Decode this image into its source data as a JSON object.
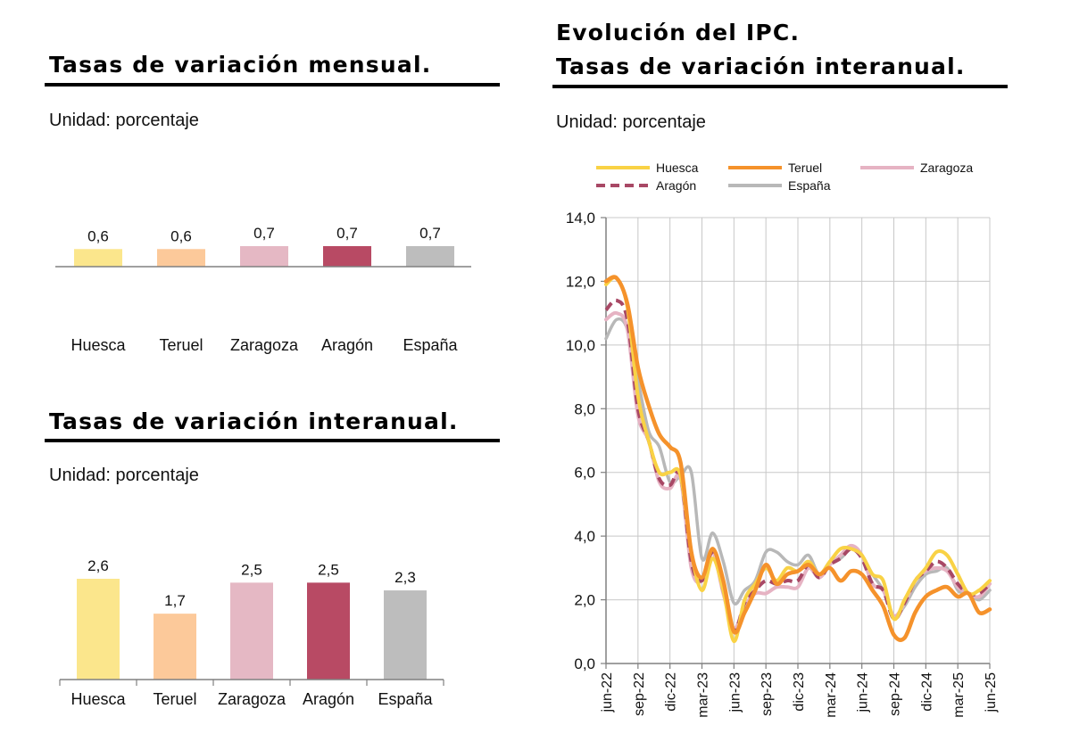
{
  "monthly": {
    "title": "Tasas de variación mensual.",
    "unit": "Unidad: porcentaje"
  },
  "annual": {
    "title": "Tasas de variación interanual.",
    "unit": "Unidad: porcentaje"
  },
  "evolution": {
    "title_line1": "Evolución del IPC.",
    "title_line2": "Tasas de variación interanual.",
    "unit": "Unidad: porcentaje"
  },
  "colors": {
    "Huesca": "#fbe68c",
    "Teruel": "#fcc99a",
    "Zaragoza": "#e5b8c4",
    "Aragón": "#b84a64",
    "España": "#bdbdbd",
    "line_Huesca": "#f9d245",
    "line_Teruel": "#f5922b",
    "line_Zaragoza": "#e6b3c3",
    "line_Aragón": "#a84865",
    "line_España": "#b8b8b8"
  },
  "chart_data": [
    {
      "type": "bar",
      "categories": [
        "Huesca",
        "Teruel",
        "Zaragoza",
        "Aragón",
        "España"
      ],
      "values": [
        0.6,
        0.6,
        0.7,
        0.7,
        0.7
      ],
      "value_labels": [
        "0,6",
        "0,6",
        "0,7",
        "0,7",
        "0,7"
      ],
      "grid": false
    },
    {
      "type": "bar",
      "categories": [
        "Huesca",
        "Teruel",
        "Zaragoza",
        "Aragón",
        "España"
      ],
      "values": [
        2.6,
        1.7,
        2.5,
        2.5,
        2.3
      ],
      "value_labels": [
        "2,6",
        "1,7",
        "2,5",
        "2,5",
        "2,3"
      ],
      "grid": false
    },
    {
      "type": "line",
      "legend_placement": "top",
      "grid": true,
      "ylim": [
        0,
        14
      ],
      "yticks": [
        "0,0",
        "2,0",
        "4,0",
        "6,0",
        "8,0",
        "10,0",
        "12,0",
        "14,0"
      ],
      "x": [
        "jun-22",
        "jul-22",
        "ago-22",
        "sep-22",
        "oct-22",
        "nov-22",
        "dic-22",
        "ene-23",
        "feb-23",
        "mar-23",
        "abr-23",
        "may-23",
        "jun-23",
        "jul-23",
        "ago-23",
        "sep-23",
        "oct-23",
        "nov-23",
        "dic-23",
        "ene-24",
        "feb-24",
        "mar-24",
        "abr-24",
        "may-24",
        "jun-24",
        "jul-24",
        "ago-24",
        "sep-24",
        "oct-24",
        "nov-24",
        "dic-24",
        "ene-25",
        "feb-25",
        "mar-25",
        "abr-25",
        "may-25",
        "jun-25"
      ],
      "xtick_labels": [
        "jun-22",
        "sep-22",
        "dic-22",
        "mar-23",
        "jun-23",
        "sep-23",
        "dic-23",
        "mar-24",
        "jun-24",
        "sep-24",
        "dic-24",
        "mar-25",
        "jun-25"
      ],
      "series": [
        {
          "name": "Huesca",
          "values": [
            11.9,
            12.1,
            11.2,
            8.4,
            7.0,
            6.0,
            6.0,
            5.9,
            3.5,
            2.3,
            3.3,
            2.3,
            0.7,
            2.0,
            2.5,
            3.0,
            2.6,
            3.0,
            2.9,
            3.2,
            2.8,
            3.2,
            3.6,
            3.6,
            3.4,
            2.8,
            2.6,
            1.4,
            2.0,
            2.6,
            3.0,
            3.5,
            3.4,
            2.8,
            2.2,
            2.3,
            2.6
          ]
        },
        {
          "name": "Teruel",
          "values": [
            12.0,
            12.1,
            11.3,
            9.3,
            8.1,
            7.2,
            6.8,
            6.3,
            3.5,
            2.7,
            3.6,
            2.6,
            1.0,
            1.6,
            2.3,
            3.1,
            2.5,
            2.8,
            2.9,
            3.1,
            2.8,
            3.0,
            2.6,
            2.9,
            2.8,
            2.3,
            1.8,
            0.9,
            0.8,
            1.6,
            2.1,
            2.3,
            2.4,
            2.1,
            2.2,
            1.6,
            1.7
          ]
        },
        {
          "name": "Zaragoza",
          "values": [
            10.8,
            11.0,
            10.5,
            7.8,
            7.0,
            5.7,
            5.5,
            5.8,
            3.0,
            2.6,
            3.5,
            2.2,
            1.1,
            1.8,
            2.2,
            2.2,
            2.4,
            2.4,
            2.4,
            3.0,
            2.7,
            3.1,
            3.4,
            3.7,
            3.4,
            2.5,
            2.3,
            1.5,
            1.9,
            2.6,
            2.9,
            3.0,
            2.9,
            2.4,
            2.2,
            2.1,
            2.5
          ]
        },
        {
          "name": "Aragón",
          "values": [
            11.1,
            11.4,
            10.8,
            8.0,
            7.0,
            5.8,
            5.6,
            5.9,
            3.2,
            2.6,
            3.5,
            2.3,
            1.0,
            1.9,
            2.3,
            2.6,
            2.5,
            2.6,
            2.6,
            3.1,
            2.7,
            3.1,
            3.3,
            3.6,
            3.3,
            2.5,
            2.3,
            1.4,
            1.9,
            2.6,
            2.9,
            3.2,
            3.0,
            2.5,
            2.2,
            2.2,
            2.5
          ]
        },
        {
          "name": "España",
          "values": [
            10.2,
            10.8,
            10.5,
            8.9,
            7.3,
            6.8,
            5.7,
            5.9,
            6.0,
            3.3,
            4.1,
            3.2,
            1.9,
            2.3,
            2.6,
            3.5,
            3.5,
            3.2,
            3.1,
            3.4,
            2.8,
            3.2,
            3.3,
            3.6,
            3.4,
            2.8,
            2.3,
            1.5,
            1.8,
            2.4,
            2.8,
            2.9,
            3.0,
            2.3,
            2.2,
            2.0,
            2.3
          ]
        }
      ]
    }
  ]
}
